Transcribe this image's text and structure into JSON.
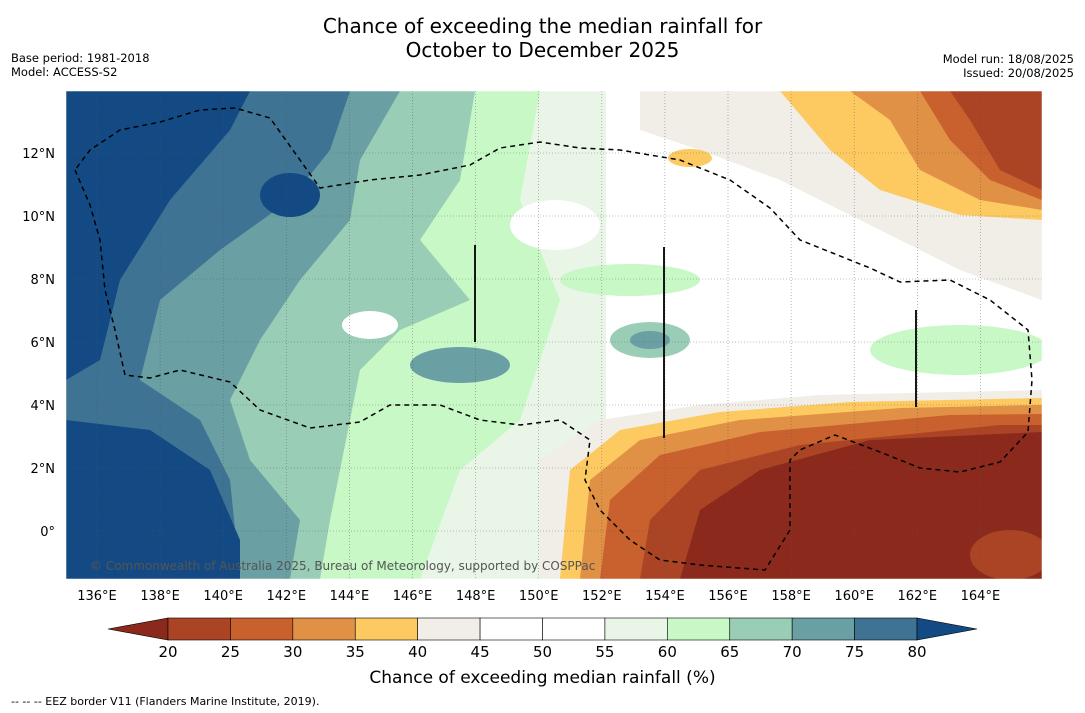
{
  "title_line1": "Chance of exceeding the median rainfall for",
  "title_line2": "October to December 2025",
  "base_period": "Base period: 1981-2018",
  "model": "Model: ACCESS-S2",
  "model_run": "Model run: 18/08/2025",
  "issued": "Issued: 20/08/2025",
  "copyright": "© Commonwealth of Australia 2025, Bureau of Meteorology, supported by COSPPac",
  "lon_labels": [
    "136°E",
    "138°E",
    "140°E",
    "142°E",
    "144°E",
    "146°E",
    "148°E",
    "150°E",
    "152°E",
    "154°E",
    "156°E",
    "158°E",
    "160°E",
    "162°E",
    "164°E"
  ],
  "lat_labels": [
    "12°N",
    "10°N",
    "8°N",
    "6°N",
    "4°N",
    "2°N",
    "0°"
  ],
  "colorbar": {
    "title": "Chance of exceeding median rainfall (%)",
    "ticks": [
      "20",
      "25",
      "30",
      "35",
      "40",
      "45",
      "50",
      "55",
      "60",
      "65",
      "70",
      "75",
      "80"
    ],
    "colors": [
      "#8b2a1c",
      "#aa4424",
      "#c9612e",
      "#e09145",
      "#fdca62",
      "#f1ede7",
      "#ffffff",
      "#ffffff",
      "#e9f5e6",
      "#c7f8c5",
      "#9acdb5",
      "#6a9fa4",
      "#3e7394",
      "#144a84"
    ]
  },
  "footer": "--  --  -- EEZ border V11 (Flanders Marine Institute, 2019)."
}
